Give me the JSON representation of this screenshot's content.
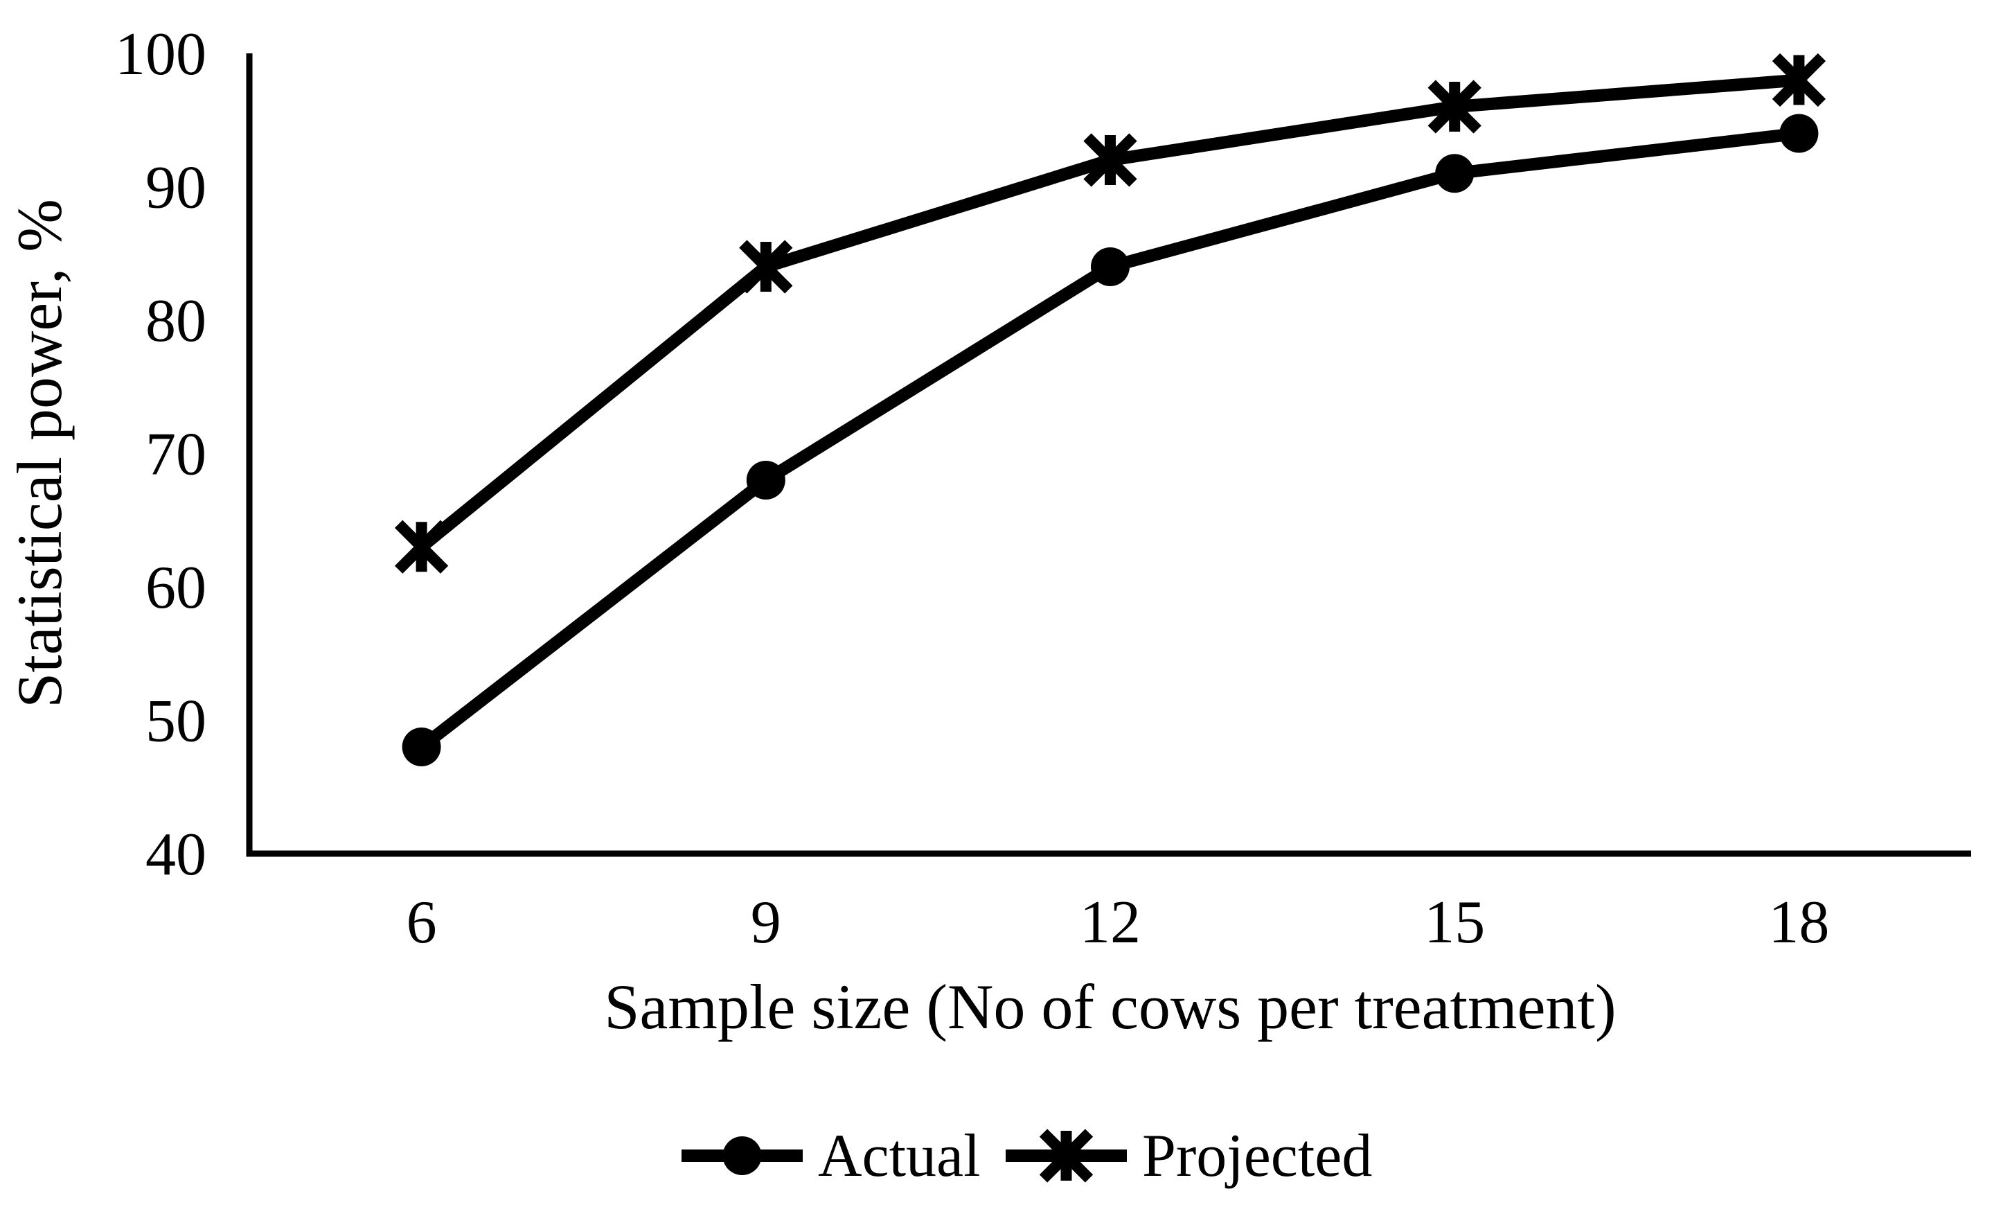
{
  "chart_data": {
    "type": "line",
    "title": "",
    "xlabel": "Sample size (No of cows per treatment)",
    "ylabel": "Statistical power, %",
    "categories": [
      6,
      9,
      12,
      15,
      18
    ],
    "yticks": [
      100,
      90,
      80,
      70,
      60,
      50,
      40
    ],
    "ylim": [
      40,
      100
    ],
    "ytick_step": 10,
    "grid": false,
    "legend_position": "bottom-center",
    "colors": {
      "line": "#000000",
      "background": "#ffffff"
    },
    "series": [
      {
        "name": "Actual",
        "marker": "circle",
        "values": [
          48,
          68,
          84,
          91,
          94
        ]
      },
      {
        "name": "Projected",
        "marker": "asterisk",
        "values": [
          63,
          84,
          92,
          96,
          98
        ]
      }
    ]
  }
}
